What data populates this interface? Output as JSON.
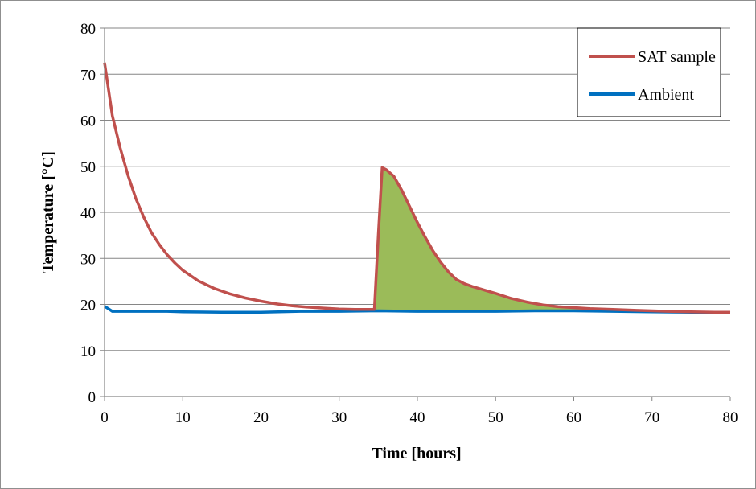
{
  "chart_data": {
    "type": "line",
    "xlabel": "Time [hours]",
    "ylabel": "Temperature [°C]",
    "xlim": [
      0,
      80
    ],
    "ylim": [
      0,
      80
    ],
    "xticks": [
      0,
      10,
      20,
      30,
      40,
      50,
      60,
      70,
      80
    ],
    "yticks": [
      0,
      10,
      20,
      30,
      40,
      50,
      60,
      70,
      80
    ],
    "grid": "horizontal",
    "legend_position": "top-right",
    "series": [
      {
        "name": "SAT sample",
        "color": "#c0504d",
        "x": [
          0,
          1,
          2,
          3,
          4,
          5,
          6,
          7,
          8,
          9,
          10,
          12,
          14,
          16,
          18,
          20,
          22,
          24,
          26,
          28,
          30,
          32,
          34,
          34.5,
          35,
          35.5,
          36,
          37,
          38,
          39,
          40,
          41,
          42,
          43,
          44,
          45,
          46,
          47,
          48,
          49,
          50,
          52,
          54,
          56,
          58,
          60,
          62,
          65,
          68,
          70,
          72,
          75,
          78,
          80
        ],
        "y": [
          72.5,
          61,
          54,
          48,
          43,
          39,
          35.6,
          33,
          30.8,
          29,
          27.4,
          25.1,
          23.5,
          22.3,
          21.4,
          20.7,
          20.1,
          19.7,
          19.4,
          19.2,
          19.0,
          18.9,
          18.9,
          18.9,
          35,
          49.7,
          49.3,
          47.8,
          44.8,
          41.3,
          37.8,
          34.6,
          31.6,
          29.1,
          27,
          25.4,
          24.5,
          23.9,
          23.4,
          22.9,
          22.4,
          21.3,
          20.5,
          19.9,
          19.5,
          19.3,
          19.1,
          18.9,
          18.7,
          18.6,
          18.5,
          18.4,
          18.3,
          18.3
        ]
      },
      {
        "name": "Ambient",
        "color": "#0070c0",
        "x": [
          0,
          1,
          5,
          8,
          10,
          15,
          20,
          25,
          30,
          35,
          40,
          45,
          50,
          55,
          60,
          65,
          70,
          75,
          80
        ],
        "y": [
          19.6,
          18.5,
          18.5,
          18.5,
          18.4,
          18.3,
          18.3,
          18.5,
          18.5,
          18.6,
          18.5,
          18.5,
          18.5,
          18.6,
          18.6,
          18.5,
          18.4,
          18.3,
          18.2
        ]
      }
    ],
    "shaded_region": {
      "color": "#9bbb59",
      "between": [
        "SAT sample",
        "Ambient"
      ],
      "x_range": [
        34.5,
        80
      ]
    }
  },
  "colors": {
    "grid": "#868686",
    "axis": "#868686",
    "frame": "#8f8f8f"
  }
}
